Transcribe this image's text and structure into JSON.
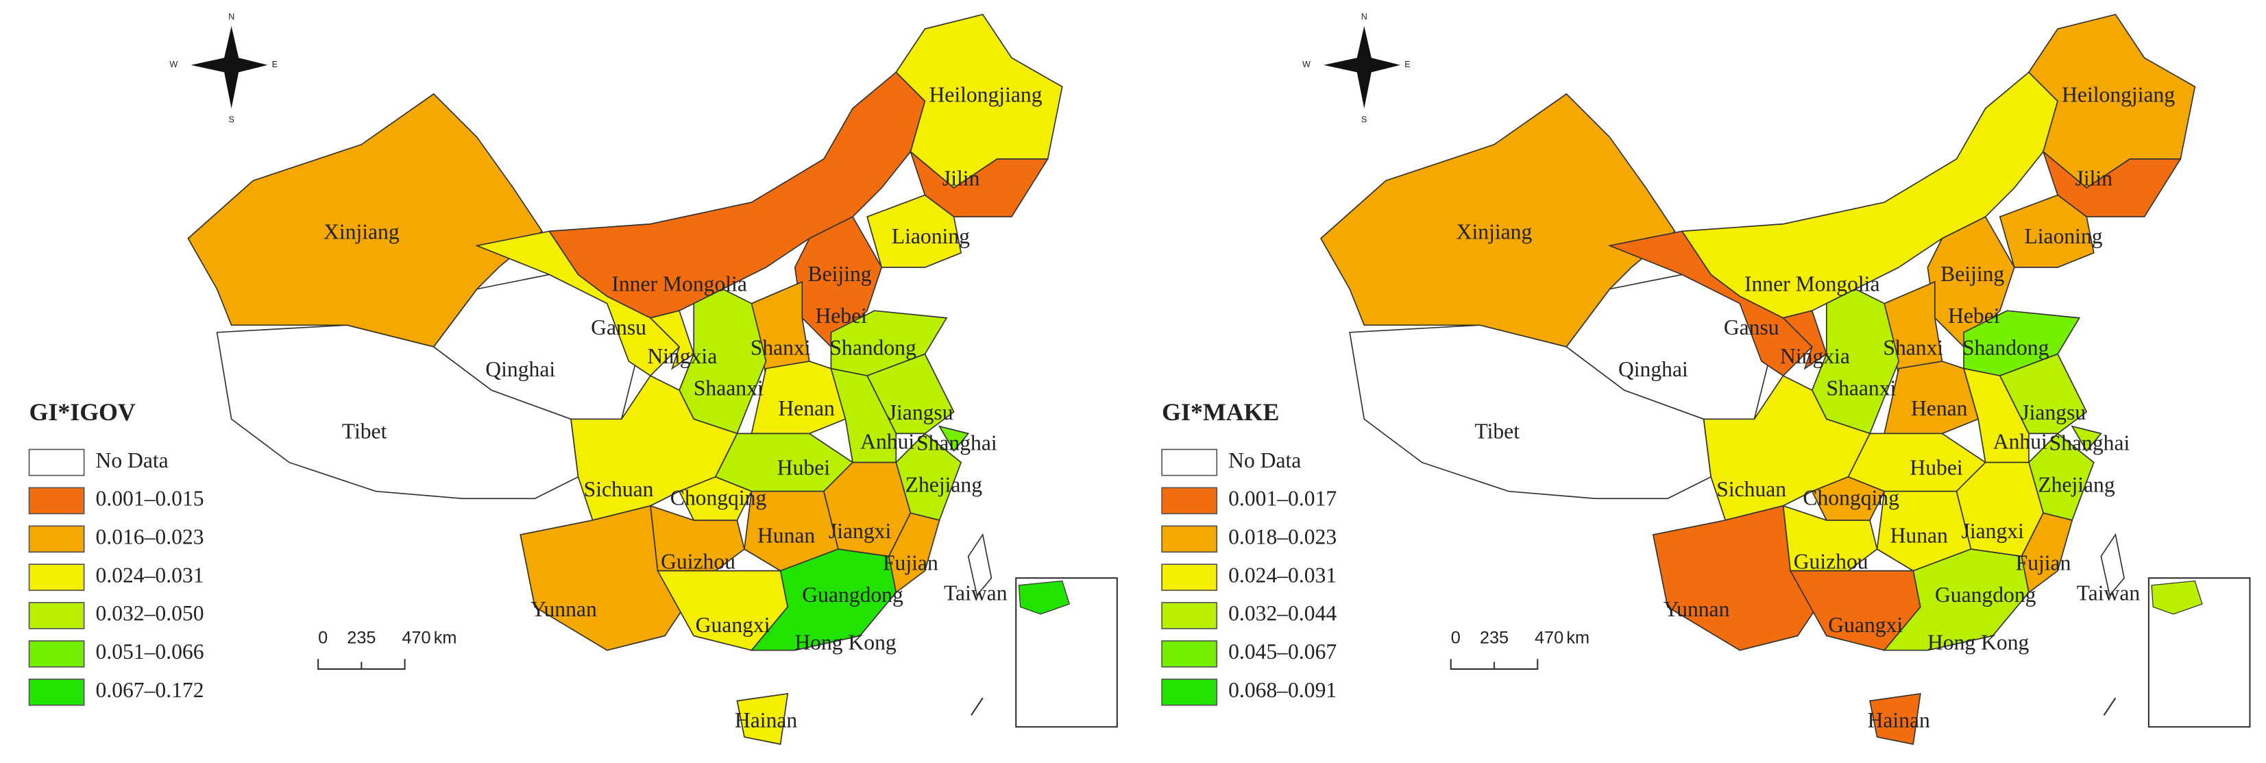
{
  "compass": [
    "N",
    "S",
    "E",
    "W"
  ],
  "scale_bar": [
    "0",
    "235",
    "470",
    "km"
  ],
  "provinces": [
    "Xinjiang",
    "Tibet",
    "Qinghai",
    "Gansu",
    "Inner Mongolia",
    "Heilongjiang",
    "Jilin",
    "Liaoning",
    "Beijing",
    "Hebei",
    "Shanxi",
    "Shandong",
    "Ningxia",
    "Shaanxi",
    "Henan",
    "Jiangsu",
    "Anhui",
    "Shanghai",
    "Hubei",
    "Sichuan",
    "Chongqing",
    "Zhejiang",
    "Hunan",
    "Jiangxi",
    "Fujian",
    "Guizhou",
    "Yunnan",
    "Guangxi",
    "Guangdong",
    "Hainan",
    "Taiwan"
  ],
  "extra_labels": [
    "Hong Kong"
  ],
  "colors": [
    "#ffffff",
    "#f26d0f",
    "#f5a800",
    "#f4ef00",
    "#b8f000",
    "#74f000",
    "#22e300"
  ],
  "maps": [
    {
      "legend_title": "GI*IGOV",
      "legend": [
        "No Data",
        "0.001–0.015",
        "0.016–0.023",
        "0.024–0.031",
        "0.032–0.050",
        "0.051–0.066",
        "0.067–0.172"
      ],
      "classes": [
        2,
        0,
        0,
        3,
        1,
        3,
        1,
        3,
        1,
        1,
        2,
        4,
        3,
        4,
        3,
        4,
        4,
        5,
        4,
        3,
        3,
        4,
        2,
        2,
        2,
        2,
        2,
        3,
        6,
        3,
        0
      ]
    },
    {
      "legend_title": "GI*MAKE",
      "legend": [
        "No Data",
        "0.001–0.017",
        "0.018–0.023",
        "0.024–0.031",
        "0.032–0.044",
        "0.045–0.067",
        "0.068–0.091"
      ],
      "classes": [
        2,
        0,
        0,
        1,
        3,
        2,
        1,
        2,
        2,
        2,
        2,
        5,
        1,
        4,
        2,
        4,
        3,
        4,
        3,
        3,
        2,
        4,
        3,
        3,
        2,
        3,
        1,
        1,
        4,
        1,
        0
      ]
    }
  ]
}
